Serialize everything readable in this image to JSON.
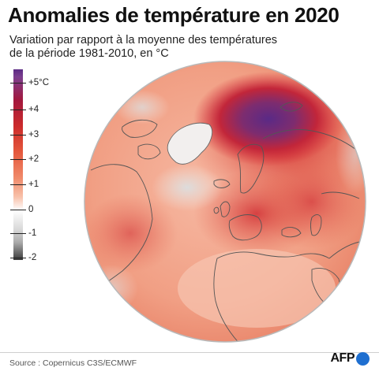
{
  "header": {
    "title": "Anomalies de température en 2020",
    "subtitle_line1": "Variation par rapport à la moyenne des températures",
    "subtitle_line2": "de la période 1981-2010, en °C"
  },
  "legend": {
    "labels": [
      "+5°C",
      "+4",
      "+3",
      "+2",
      "+1",
      "0",
      "-1",
      "-2"
    ],
    "colors": {
      "max": "#5b2b84",
      "high": "#cc2b2b",
      "mid": "#f08a6a",
      "zero": "#ffffff",
      "min": "#3a3a3a"
    }
  },
  "map": {
    "icon": "globe-anomaly-map",
    "colors": {
      "ocean_warm": "#f4a98f",
      "hotspot_red": "#d9343a",
      "hotspot_purple": "#6a2f8a",
      "cool_gray": "#dedede",
      "coastline": "#555555"
    }
  },
  "footer": {
    "source": "Source : Copernicus C3S/ECMWF",
    "credit": "AFP"
  }
}
